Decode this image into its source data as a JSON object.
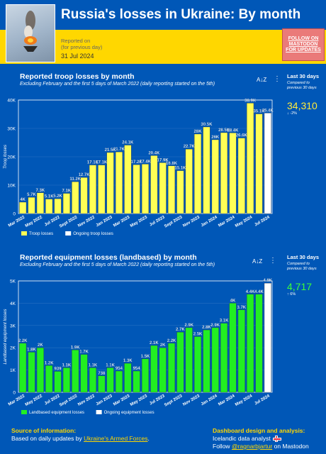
{
  "header": {
    "title": "Russia's losses in Ukraine:  By month",
    "reported_on_line1": "Reported on",
    "reported_on_line2": "(for previous day)",
    "date": "31 Jul 2024",
    "follow_line1": "FOLLOW ON",
    "follow_line2": "MASTODON",
    "follow_line3": "FOR UPDATES"
  },
  "troops": {
    "title": "Reported troop losses by month",
    "subtitle": "Excluding February and the first 5 days of March 2022 (daily reporting started on the 5th)",
    "side_title": "Last 30 days",
    "side_sub1": "Compared to",
    "side_sub2": "previous 30 days",
    "side_value": "34,310",
    "side_delta": "-2%"
  },
  "equipment": {
    "title": "Reported equipment losses (landbased) by month",
    "subtitle": "Excluding February and the first 5 days of March 2022 (daily reporting started on the 5th)",
    "side_title": "Last 30 days",
    "side_sub1": "Compared to",
    "side_sub2": "previous 30 days",
    "side_value": "4,717",
    "side_delta": "6%"
  },
  "footer": {
    "source_heading": "Source of information:",
    "source_prefix": "Based on daily updates by ",
    "source_link": "Ukraine's Armed Forces",
    "source_suffix": ".",
    "design_heading": "Dashboard design and analysis:",
    "design_line1": "Icelandic data analyst",
    "design_prefix": "Follow ",
    "design_link": "@ragnarbjartur",
    "design_suffix": " on Mastodon"
  },
  "colors": {
    "blue": "#0057b7",
    "yellow": "#ffd700",
    "troop_bar": "#ffff55",
    "equip_bar": "#22ee22",
    "ongoing_bar": "#ffffff"
  },
  "chart_data": [
    {
      "type": "bar",
      "title": "Reported troop losses by month",
      "ylabel": "Troop losses",
      "ylim": [
        0,
        40000
      ],
      "yticks": [
        "0",
        "10K",
        "20K",
        "30K",
        "40K"
      ],
      "xtick_labels": [
        "Mar 2022",
        "May 2022",
        "Jul 2022",
        "Sept 2022",
        "Nov 2022",
        "Jan 2023",
        "Mar 2023",
        "May 2023",
        "Jul 2023",
        "Sept 2023",
        "Nov 2023",
        "Jan 2024",
        "Mar 2024",
        "May 2024",
        "Jul 2024"
      ],
      "legend": [
        "Troop losses",
        "Ongoing troop losses"
      ],
      "values": [
        4000,
        5700,
        7300,
        5100,
        5200,
        7100,
        11200,
        12700,
        17100,
        17100,
        21500,
        21700,
        24100,
        17200,
        17400,
        20400,
        17900,
        16800,
        15100,
        22700,
        28000,
        30500,
        26000,
        28500,
        28400,
        26600,
        38900,
        35100,
        35400
      ],
      "labels": [
        "4K",
        "5.7K",
        "7.3K",
        "5.1K",
        "5.2K",
        "7.1K",
        "11.2K",
        "12.7K",
        "17.1K",
        "17.1K",
        "21.5K",
        "21.7K",
        "24.1K",
        "17.2K",
        "17.4K",
        "20.4K",
        "17.9K",
        "16.8K",
        "15.1K",
        "22.7K",
        "28K",
        "30.5K",
        "26K",
        "28.5K",
        "28.4K",
        "26.6K",
        "38.9K",
        "35.1K",
        "35.4K"
      ],
      "ongoing_index": 28
    },
    {
      "type": "bar",
      "title": "Reported equipment losses (landbased) by month",
      "ylabel": "Landbased equipment losses",
      "ylim": [
        0,
        5000
      ],
      "yticks": [
        "0",
        "1K",
        "2K",
        "3K",
        "4K",
        "5K"
      ],
      "xtick_labels": [
        "Mar 2022",
        "May 2022",
        "Jul 2022",
        "Sept 2022",
        "Nov 2022",
        "Jan 2023",
        "Mar 2023",
        "May 2023",
        "Jul 2023",
        "Sept 2023",
        "Nov 2023",
        "Jan 2024",
        "Mar 2024",
        "May 2024",
        "Jul 2024"
      ],
      "legend": [
        "Landbased equipment losses",
        "Ongoing equipment losses"
      ],
      "values": [
        2200,
        1800,
        2000,
        1200,
        939,
        1100,
        1900,
        1700,
        1100,
        738,
        1100,
        954,
        1300,
        954,
        1500,
        2100,
        2000,
        2200,
        2700,
        2900,
        2500,
        2800,
        2900,
        3100,
        4000,
        3700,
        4400,
        4400,
        4900
      ],
      "labels": [
        "2.2K",
        "1.8K",
        "2K",
        "1.2K",
        "939",
        "1.1K",
        "1.9K",
        "1.7K",
        "1.1K",
        "738",
        "1.1K",
        "954",
        "1.3K",
        "954",
        "1.5K",
        "2.1K",
        "2K",
        "2.2K",
        "2.7K",
        "2.9K",
        "2.5K",
        "2.8K",
        "2.9K",
        "3.1K",
        "4K",
        "3.7K",
        "4.4K",
        "4.4K",
        "4.9K"
      ],
      "ongoing_index": 28
    }
  ]
}
